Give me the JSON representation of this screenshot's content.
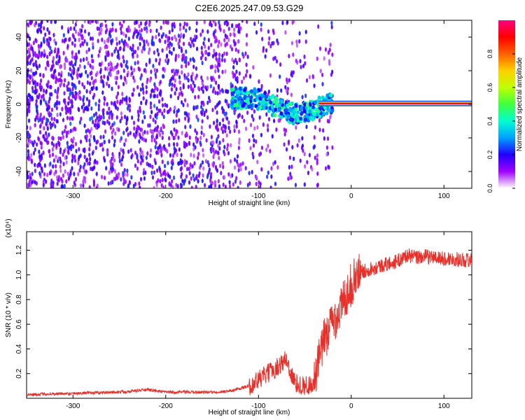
{
  "title": "C2E6.2025.247.09.53.G29",
  "chart_data": [
    {
      "type": "heatmap",
      "xlabel": "Height of straight line (km)",
      "ylabel": "Frequency (Hz)",
      "xlim": [
        -350,
        130
      ],
      "ylim": [
        -50,
        50
      ],
      "x_ticks": [
        -300,
        -200,
        -100,
        0,
        100
      ],
      "y_ticks": [
        -40,
        -20,
        0,
        20,
        40
      ],
      "colorbar": {
        "label": "Normalized spectral amplitude",
        "range": [
          0,
          1
        ],
        "ticks": [
          "0.0",
          "0.2",
          "0.4",
          "0.6",
          "0.8"
        ],
        "colormap": [
          "#ffffff",
          "#a000ff",
          "#2000ff",
          "#00a0ff",
          "#00ffd0",
          "#40ff40",
          "#c0ff00",
          "#ffd000",
          "#ff6000",
          "#ff0000",
          "#ff0080"
        ]
      },
      "features": {
        "scattered_noise_x_range": [
          -350,
          -40
        ],
        "signal_line_frequency": 0.5,
        "signal_line_x_range": [
          -35,
          130
        ],
        "descending_band": [
          [
            -130,
            4
          ],
          [
            -100,
            3
          ],
          [
            -80,
            -2
          ],
          [
            -60,
            -6
          ],
          [
            -45,
            -4
          ],
          [
            -30,
            -1
          ],
          [
            -20,
            0.5
          ]
        ]
      }
    },
    {
      "type": "line",
      "xlabel": "Height of straight line (km)",
      "ylabel": "SNR (10 * v/v)",
      "y_multiplier": "(x10⁴)",
      "xlim": [
        -350,
        130
      ],
      "ylim": [
        0,
        1.35
      ],
      "x_ticks": [
        -300,
        -200,
        -100,
        0,
        100
      ],
      "y_ticks": [
        "0.2",
        "0.4",
        "0.6",
        "0.8",
        "1.0",
        "1.2"
      ],
      "color": "#e8302a",
      "series_points": [
        [
          -350,
          0.03
        ],
        [
          -300,
          0.04
        ],
        [
          -250,
          0.05
        ],
        [
          -220,
          0.07
        ],
        [
          -200,
          0.05
        ],
        [
          -150,
          0.05
        ],
        [
          -130,
          0.06
        ],
        [
          -110,
          0.1
        ],
        [
          -100,
          0.15
        ],
        [
          -90,
          0.2
        ],
        [
          -80,
          0.25
        ],
        [
          -70,
          0.32
        ],
        [
          -65,
          0.2
        ],
        [
          -60,
          0.12
        ],
        [
          -50,
          0.1
        ],
        [
          -40,
          0.12
        ],
        [
          -35,
          0.3
        ],
        [
          -30,
          0.45
        ],
        [
          -25,
          0.55
        ],
        [
          -20,
          0.62
        ],
        [
          -15,
          0.68
        ],
        [
          -10,
          0.75
        ],
        [
          -5,
          0.85
        ],
        [
          0,
          0.92
        ],
        [
          5,
          0.98
        ],
        [
          10,
          1.02
        ],
        [
          20,
          1.05
        ],
        [
          30,
          1.07
        ],
        [
          40,
          1.09
        ],
        [
          50,
          1.11
        ],
        [
          60,
          1.16
        ],
        [
          70,
          1.14
        ],
        [
          80,
          1.15
        ],
        [
          90,
          1.14
        ],
        [
          100,
          1.13
        ],
        [
          110,
          1.13
        ],
        [
          120,
          1.12
        ],
        [
          130,
          1.12
        ]
      ]
    }
  ]
}
